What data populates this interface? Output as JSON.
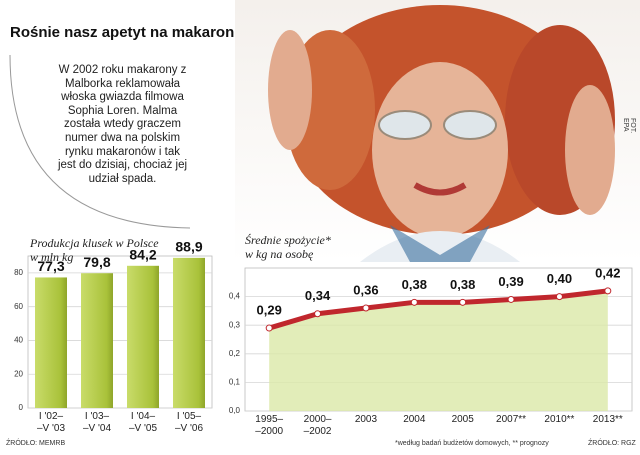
{
  "title": "Rośnie nasz apetyt na makaron",
  "note": "W 2002 roku makarony z Malborka reklamowała włoska gwiazda filmowa Sophia Loren. Malma została wtedy graczem numer dwa na polskim rynku makaronów i tak jest do dzisiaj, chociaż jej udział spada.",
  "photo_credit": "FOT. EPA",
  "chart_data": [
    {
      "type": "bar",
      "title": "Produkcja klusek w Polsce",
      "y_label": "w mln kg",
      "categories": [
        "I '02–\n–V '03",
        "I '03–\n–V '04",
        "I '04–\n–V '05",
        "I '05–\n–V '06"
      ],
      "values": [
        77.3,
        79.8,
        84.2,
        88.9
      ],
      "value_labels": [
        "77,3",
        "79,8",
        "84,2",
        "88,9"
      ],
      "color": "#a9c23a",
      "ylim": [
        0,
        90
      ],
      "yticks": [
        0,
        20,
        40,
        60,
        80
      ],
      "grid": true,
      "source": "ŹRÓDŁO: MEMRB"
    },
    {
      "type": "line",
      "title": "Średnie spożycie*",
      "y_label": "w kg na osobę",
      "categories": [
        "1995–\n–2000",
        "2000–\n–2002",
        "2003",
        "2004",
        "2005",
        "2007**",
        "2010**",
        "2013**"
      ],
      "values": [
        0.29,
        0.34,
        0.36,
        0.38,
        0.38,
        0.39,
        0.4,
        0.42
      ],
      "value_labels": [
        "0,29",
        "0,34",
        "0,36",
        "0,38",
        "0,38",
        "0,39",
        "0,40",
        "0,42"
      ],
      "color": "#c0272d",
      "area_color": "#dbe9a8",
      "ylim": [
        0,
        0.5
      ],
      "yticks": [
        {
          "value": 0,
          "label": "0,0"
        },
        {
          "value": 0.1,
          "label": "0,1"
        },
        {
          "value": 0.2,
          "label": "0,2"
        },
        {
          "value": 0.3,
          "label": "0,3"
        },
        {
          "value": 0.4,
          "label": "0,4"
        }
      ],
      "grid": true,
      "footnote": "*według badań budżetów domowych, ** prognozy",
      "source": "ŹRÓDŁO: RGZ"
    }
  ]
}
